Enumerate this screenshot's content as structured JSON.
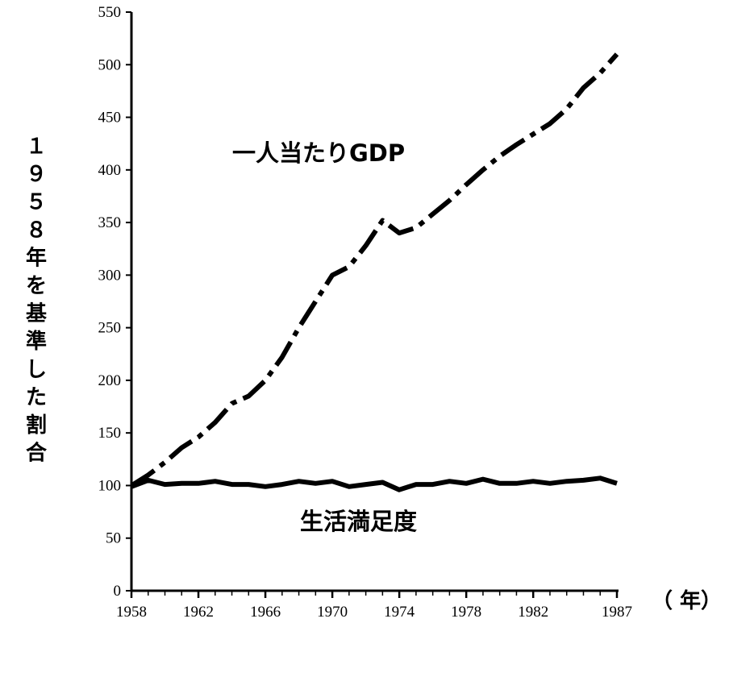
{
  "chart_data": {
    "type": "line",
    "ylabel": "１９５８年を基準した割合",
    "xunit": "（ 年）",
    "xlim": [
      1958,
      1987
    ],
    "ylim": [
      0,
      550
    ],
    "x_ticks": [
      "1958",
      "1962",
      "1966",
      "1970",
      "1974",
      "1978",
      "1982",
      "1987"
    ],
    "y_ticks": [
      "0",
      "50",
      "100",
      "150",
      "200",
      "250",
      "300",
      "350",
      "400",
      "450",
      "500",
      "550"
    ],
    "grid": false,
    "legend": "none",
    "series": [
      {
        "name": "一人当たりGDP",
        "style": "dash-dot",
        "color": "#000000",
        "points": [
          [
            1958,
            100
          ],
          [
            1959,
            110
          ],
          [
            1960,
            122
          ],
          [
            1961,
            136
          ],
          [
            1962,
            146
          ],
          [
            1963,
            160
          ],
          [
            1964,
            178
          ],
          [
            1965,
            185
          ],
          [
            1966,
            200
          ],
          [
            1967,
            222
          ],
          [
            1968,
            250
          ],
          [
            1969,
            275
          ],
          [
            1970,
            300
          ],
          [
            1971,
            308
          ],
          [
            1972,
            328
          ],
          [
            1973,
            352
          ],
          [
            1974,
            340
          ],
          [
            1975,
            345
          ],
          [
            1976,
            358
          ],
          [
            1977,
            371
          ],
          [
            1978,
            386
          ],
          [
            1979,
            400
          ],
          [
            1980,
            413
          ],
          [
            1981,
            424
          ],
          [
            1982,
            434
          ],
          [
            1983,
            444
          ],
          [
            1984,
            458
          ],
          [
            1985,
            478
          ],
          [
            1986,
            492
          ],
          [
            1987,
            510
          ]
        ]
      },
      {
        "name": "生活満足度",
        "style": "solid",
        "color": "#000000",
        "points": [
          [
            1958,
            99
          ],
          [
            1959,
            105
          ],
          [
            1960,
            101
          ],
          [
            1961,
            102
          ],
          [
            1962,
            102
          ],
          [
            1963,
            104
          ],
          [
            1964,
            101
          ],
          [
            1965,
            101
          ],
          [
            1966,
            99
          ],
          [
            1967,
            101
          ],
          [
            1968,
            104
          ],
          [
            1969,
            102
          ],
          [
            1970,
            104
          ],
          [
            1971,
            99
          ],
          [
            1972,
            101
          ],
          [
            1973,
            103
          ],
          [
            1974,
            96
          ],
          [
            1975,
            101
          ],
          [
            1976,
            101
          ],
          [
            1977,
            104
          ],
          [
            1978,
            102
          ],
          [
            1979,
            106
          ],
          [
            1980,
            102
          ],
          [
            1981,
            102
          ],
          [
            1982,
            104
          ],
          [
            1983,
            102
          ],
          [
            1984,
            104
          ],
          [
            1985,
            105
          ],
          [
            1986,
            107
          ],
          [
            1987,
            102
          ]
        ]
      }
    ]
  }
}
